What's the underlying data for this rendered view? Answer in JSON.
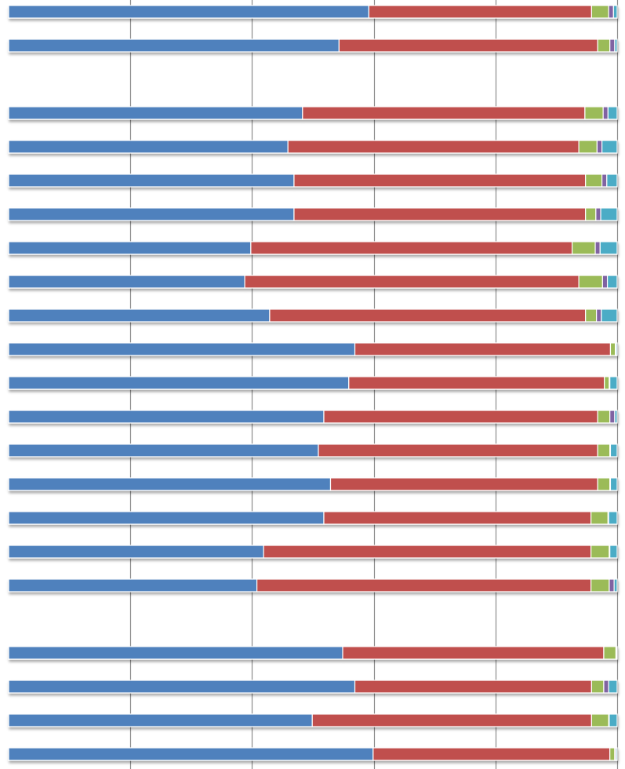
{
  "chart_data": {
    "type": "bar",
    "orientation": "horizontal",
    "stacked": true,
    "percent_stacked": true,
    "title": "",
    "xlabel": "",
    "ylabel": "",
    "xlim": [
      0,
      100
    ],
    "grid": true,
    "legend": "none",
    "rows": [
      {
        "group": 0,
        "values": [
          59.2,
          36.6,
          2.8,
          0.8,
          0.6
        ]
      },
      {
        "group": 0,
        "values": [
          54.3,
          42.5,
          2.0,
          0.8,
          0.4
        ]
      },
      {
        "group": 1,
        "values": [
          48.3,
          46.4,
          3.0,
          0.8,
          1.5
        ]
      },
      {
        "group": 1,
        "values": [
          45.9,
          47.8,
          3.0,
          0.8,
          2.5
        ]
      },
      {
        "group": 1,
        "values": [
          46.9,
          47.9,
          2.7,
          0.8,
          1.7
        ]
      },
      {
        "group": 1,
        "values": [
          46.9,
          47.9,
          1.7,
          0.8,
          2.7
        ]
      },
      {
        "group": 1,
        "values": [
          39.8,
          52.8,
          3.8,
          0.8,
          2.8
        ]
      },
      {
        "group": 1,
        "values": [
          38.8,
          54.9,
          3.9,
          0.8,
          1.6
        ]
      },
      {
        "group": 1,
        "values": [
          42.9,
          51.9,
          1.8,
          0.8,
          2.6
        ]
      },
      {
        "group": 1,
        "values": [
          56.9,
          42.0,
          0.8,
          0.1,
          0.2
        ]
      },
      {
        "group": 1,
        "values": [
          55.9,
          42.0,
          0.8,
          0.1,
          1.2
        ]
      },
      {
        "group": 1,
        "values": [
          51.8,
          45.0,
          2.0,
          0.8,
          0.4
        ]
      },
      {
        "group": 1,
        "values": [
          50.9,
          45.9,
          2.0,
          0.1,
          1.1
        ]
      },
      {
        "group": 1,
        "values": [
          52.9,
          43.9,
          2.0,
          0.1,
          1.1
        ]
      },
      {
        "group": 1,
        "values": [
          51.8,
          43.9,
          2.8,
          0.1,
          1.4
        ]
      },
      {
        "group": 1,
        "values": [
          41.9,
          53.8,
          3.0,
          0.1,
          1.2
        ]
      },
      {
        "group": 1,
        "values": [
          40.8,
          54.9,
          3.0,
          0.8,
          0.5
        ]
      },
      {
        "group": 2,
        "values": [
          54.9,
          42.9,
          2.0,
          0.1,
          0.1
        ]
      },
      {
        "group": 2,
        "values": [
          56.9,
          38.9,
          2.0,
          0.8,
          1.4
        ]
      },
      {
        "group": 2,
        "values": [
          49.9,
          45.9,
          2.8,
          0.1,
          1.3
        ]
      },
      {
        "group": 2,
        "values": [
          59.9,
          38.9,
          0.8,
          0.2,
          0.2
        ]
      }
    ],
    "colors": [
      "#4f81bd",
      "#c0504d",
      "#9bbb59",
      "#8064a2",
      "#4bacc6"
    ]
  }
}
